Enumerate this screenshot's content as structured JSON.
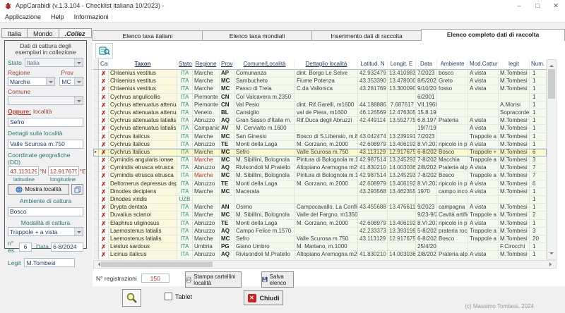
{
  "window": {
    "title": "AppCarabidi (v.1.3.104 - Checklist italiana 10/2023) -",
    "copyright": "(c) Massimo Tombesi, 2024"
  },
  "icons": {
    "app": "beetle",
    "minimize": "–",
    "maximize": "□",
    "close": "✕",
    "find": "search-records",
    "delete_mark": "✗",
    "row_pointer": "▸",
    "mostra": "globe",
    "copy": "copy-pages",
    "stampa": "printer",
    "salva": "floppy-disk",
    "cerca": "magnifier",
    "chiudi": "close-x"
  },
  "menu": {
    "items": [
      "Applicazione",
      "Help",
      "Informazioni"
    ]
  },
  "side_tabs": {
    "items": [
      "Italia",
      "Mondo",
      ".Collez"
    ],
    "active": 2
  },
  "main_tabs": {
    "items": [
      "Elenco taxa italiani",
      "Elenco taxa mondiali",
      "Inserimento dati di raccolta",
      "Elenco completo dati di raccolta"
    ],
    "active": 3
  },
  "sidebar": {
    "panel_title_line1": "Dati di cattura degli",
    "panel_title_line2": "esemplari in collezione",
    "stato_label": "Stato",
    "stato_value": "Italia",
    "regione_label": "Regione",
    "regione_value": "Marche",
    "prov_label": "Prov",
    "prov_value": "MC",
    "comune_label": "Comune",
    "comune_value": "",
    "oppure_label": "Oppure:",
    "localita_label": "località",
    "localita_value": "Sefro",
    "dettagli_label": "Dettagli sulla località",
    "dettagli_value": "Valle Scurosa m.750",
    "coord_label": "Coordinate geografiche (DD)",
    "lat_value": "43.113129",
    "lat_unit": "°N",
    "lat_caption": "latitudine",
    "lon_value": "12.917675",
    "lon_unit": "°E",
    "lon_caption": "longitudine",
    "mostra_button": "Mostra località",
    "ambiente_label": "Ambiente di cattura",
    "ambiente_value": "Bosco",
    "modalita_label": "Modalità di cattura",
    "modalita_value": "Trappole + a vista",
    "nes_label": "n° es.",
    "nes_value": "6",
    "data_label": "Data",
    "data_value": "6-8/2024",
    "legit_label": "Legit",
    "legit_value": "M.Tombesi"
  },
  "table": {
    "columns": [
      "Canc",
      "Taxon",
      "Stato",
      "Regione",
      "Prov",
      "Comune/Località",
      "Dettaglio località",
      "Latitud. N",
      "Longit. E",
      "Data",
      "Ambiente",
      "Mod.Cattura",
      "legit",
      "Num. c"
    ],
    "selected_index": 10,
    "rows": [
      {
        "taxon": "Chlaenius vestitus",
        "stato": "ITA",
        "regione": "Marche",
        "prov": "AP",
        "comune": "Comunanza",
        "dettaglio": "dint. Borgo Le Selve",
        "lat": "42.932479",
        "lon": "13.410983",
        "data": "7/2023",
        "ambiente": "bosco",
        "mod": "A vista",
        "legit": "M.Tombesi",
        "num": "1"
      },
      {
        "taxon": "Chlaenius vestitus",
        "stato": "ITA",
        "regione": "Marche",
        "prov": "MC",
        "comune": "Sambucheto",
        "dettaglio": "Fiume Potenza",
        "lat": "43.353390",
        "lon": "13.478000",
        "data": "8/5/2023",
        "ambiente": "Greto",
        "mod": "A vista",
        "legit": "M.Tombesi",
        "num": "1"
      },
      {
        "taxon": "Chlaenius vestitus",
        "stato": "ITA",
        "regione": "Marche",
        "prov": "MC",
        "comune": "Passo di Treia",
        "dettaglio": "C.da Vallonica",
        "lat": "43.281769",
        "lon": "13.300090",
        "data": "9/10/202",
        "ambiente": "fosso",
        "mod": "A vista",
        "legit": "M.Tombesi",
        "num": "1"
      },
      {
        "taxon": "Cychrus angulicollis",
        "stato": "ITA",
        "regione": "Piemonte",
        "prov": "CN",
        "comune": "Col Valcavera m.2350",
        "dettaglio": "",
        "lat": "",
        "lon": "",
        "data": "6/2001",
        "ambiente": "",
        "mod": "",
        "legit": "",
        "num": "1"
      },
      {
        "taxon": "Cychrus attenuatus attenuatus",
        "stato": "ITA",
        "regione": "Piemonte",
        "prov": "CN",
        "comune": "Val Pesio",
        "dettaglio": "dint. Rif.Garelli, m1600",
        "lat": "44.188886",
        "lon": "7.687617",
        "data": "VII.1968",
        "ambiente": "",
        "mod": "",
        "legit": "A.Morisi",
        "num": "1"
      },
      {
        "taxon": "Cychrus attenuatus attenuatus",
        "stato": "ITA",
        "regione": "Veneto",
        "prov": "BL",
        "comune": "Cansiglio",
        "dettaglio": "val de Piera, m1600",
        "lat": "46.126569",
        "lon": "12.476305",
        "data": "15.8.1961",
        "ambiente": "",
        "mod": "",
        "legit": "Sopracordevole",
        "num": "1"
      },
      {
        "taxon": "Cychrus attenuatus latialis",
        "stato": "ITA",
        "regione": "Abruzzo",
        "prov": "AQ",
        "comune": "Gran Sasso d'Italia m.",
        "dettaglio": "Rif.Duca degli Abruzzi",
        "lat": "42.449114",
        "lon": "13.552775",
        "data": "6.8.1973",
        "ambiente": "Prateria",
        "mod": "A vista",
        "legit": "M.Tombesi",
        "num": "1"
      },
      {
        "taxon": "Cychrus attenuatus latialis",
        "stato": "ITA",
        "regione": "Campania",
        "prov": "AV",
        "comune": "M. Cervialto m.1600",
        "dettaglio": "",
        "lat": "",
        "lon": "",
        "data": "19/7/197",
        "ambiente": "",
        "mod": "A vista",
        "legit": "M.Tombesi",
        "num": "1"
      },
      {
        "taxon": "Cychrus italicus",
        "stato": "ITA",
        "regione": "Marche",
        "prov": "MC",
        "comune": "San Ginesio",
        "dettaglio": "Bosco di S.Liberato, m.800",
        "lat": "43.042474",
        "lon": "13.239191",
        "data": "7/2023",
        "ambiente": "",
        "mod": "Trappole a caduta",
        "legit": "M.Tombesi",
        "num": "1"
      },
      {
        "taxon": "Cychrus italicus",
        "stato": "ITA",
        "regione": "Abruzzo",
        "prov": "TE",
        "comune": "Monti della Laga",
        "dettaglio": "M. Gorzano, m.2000",
        "lat": "42.608979",
        "lon": "13.406192",
        "data": "8.VI.2024",
        "ambiente": "ripicolo in pr",
        "mod": "A vista",
        "legit": "M.Tombesi",
        "num": "1"
      },
      {
        "taxon": "Cychrus italicus",
        "stato": "ITA",
        "regione": "Marche",
        "prov": "MC",
        "comune": "Sefro",
        "dettaglio": "Valle Scurosa m.750",
        "lat": "43.113129",
        "lon": "12.917675",
        "data": "6-8/2024",
        "ambiente": "Bosco",
        "mod": "Trappole + a vista",
        "legit": "M.Tombesi",
        "num": "6"
      },
      {
        "taxon": "Cymindis angularis ionae",
        "stato": "ITA",
        "regione": "Marche",
        "regione_red": true,
        "prov": "MC",
        "comune": "M. Sibillini, Bolognola",
        "dettaglio": "Pintura di Bolognola m.1200",
        "lat": "42.987514",
        "lon": "13.245293",
        "data": "7-8/2023",
        "ambiente": "Macchia",
        "mod": "Trappole a caduta",
        "legit": "M.Tombesi",
        "num": "3"
      },
      {
        "taxon": "Cymindis etrusca etrusca",
        "stato": "ITA",
        "regione": "Abruzzo",
        "prov": "AQ",
        "comune": "Rivisondoli M.Pratello",
        "dettaglio": "Altopiano Aremogna m2000",
        "lat": "41.830210",
        "lon": "14.003036",
        "data": "2/8/2024",
        "ambiente": "Prateria alpi",
        "mod": "A vista",
        "legit": "M.Tombesi",
        "num": "7"
      },
      {
        "taxon": "Cymindis etrusca etrusca",
        "stato": "ITA",
        "regione": "Marche",
        "regione_red": true,
        "prov": "MC",
        "comune": "M. Sibillini, Bolognola",
        "dettaglio": "Pintura di Bolognola m.1200",
        "lat": "42.987514",
        "lon": "13.245293",
        "data": "7-8/2023",
        "ambiente": "Bosco",
        "mod": "Trappole a caduta",
        "legit": "M.Tombesi",
        "num": "7"
      },
      {
        "taxon": "Deltomerus depressus depressus",
        "stato": "ITA",
        "regione": "Abruzzo",
        "prov": "TE",
        "comune": "Monti della Laga",
        "dettaglio": "M. Gorzano, m.2000",
        "lat": "42.608979",
        "lon": "13.406192",
        "data": "8.VI.2024",
        "ambiente": "ripicolo in pr",
        "mod": "A vista",
        "legit": "M.Tombesi",
        "num": "6"
      },
      {
        "taxon": "Dinodes decipiens",
        "stato": "ITA",
        "regione": "Marche",
        "prov": "MC",
        "comune": "Macerata",
        "dettaglio": "",
        "lat": "43.293568",
        "lon": "13.462355",
        "data": "1970",
        "ambiente": "campo incolt",
        "mod": "A vista",
        "legit": "M.Tombesi",
        "num": "1"
      },
      {
        "taxon": "Dinodes viridis",
        "stato": "UZB",
        "regione": "",
        "prov": "",
        "comune": "",
        "dettaglio": "",
        "lat": "",
        "lon": "",
        "data": "",
        "ambiente": "",
        "mod": "",
        "legit": "",
        "num": "1"
      },
      {
        "taxon": "Drypta dentata",
        "stato": "ITA",
        "regione": "Marche",
        "prov": "AN",
        "comune": "Osimo",
        "dettaglio": "Campocavallo, La Confluenza",
        "lat": "43.455688",
        "lon": "13.476611",
        "data": "9/2023",
        "ambiente": "campagna",
        "mod": "A vista",
        "legit": "M.Tombesi",
        "num": "1"
      },
      {
        "taxon": "Duvalius sclanoi",
        "stato": "ITA",
        "regione": "Marche",
        "prov": "MC",
        "comune": "M. Sibillini, Bolognola",
        "dettaglio": "Valle del Fargno, m1350",
        "lat": "",
        "lon": "",
        "data": "9/23-9/2",
        "ambiente": "Cavità artific",
        "mod": "Trappole a caduta",
        "legit": "M.Tombesi",
        "num": "2"
      },
      {
        "taxon": "Elaphrus uliginosus",
        "stato": "ITA",
        "regione": "Abruzzo",
        "prov": "TE",
        "comune": "Monti della Laga",
        "dettaglio": "M. Gorzano, m.2000",
        "lat": "42.608979",
        "lon": "13.406192",
        "data": "8.VI.2024",
        "ambiente": "ripicolo in pr",
        "mod": "A vista",
        "legit": "M.Tombesi",
        "num": "1"
      },
      {
        "taxon": "Laemostenus latialis",
        "stato": "ITA",
        "regione": "Abruzzo",
        "prov": "AQ",
        "comune": "Campo Felice m.1570",
        "dettaglio": "",
        "lat": "42.233373",
        "lon": "13.393199",
        "data": "5-8/2024",
        "ambiente": "prateria rocc",
        "mod": "Trappole a caduta",
        "legit": "M.Tombesi",
        "num": "3"
      },
      {
        "taxon": "Laemostenus latialis",
        "stato": "ITA",
        "regione": "Marche",
        "prov": "MC",
        "comune": "Sefro",
        "dettaglio": "Valle Scurosa m.750",
        "lat": "43.113129",
        "lon": "12.917675",
        "data": "6-8/2024",
        "ambiente": "Bosco",
        "mod": "Trappole a caduta",
        "legit": "M.Tombesi",
        "num": "20"
      },
      {
        "taxon": "Leistus sardous",
        "stato": "ITA",
        "regione": "Umbria",
        "prov": "PG",
        "comune": "Giano Umbro",
        "dettaglio": "M. Martano, m.1000",
        "lat": "",
        "lon": "",
        "data": "25/4/202",
        "ambiente": "",
        "mod": "",
        "legit": "F.Cirocchi",
        "num": "1"
      },
      {
        "taxon": "Licinus italicus",
        "stato": "ITA",
        "regione": "Abruzzo",
        "prov": "AQ",
        "comune": "Rivisondoli M.Pratello",
        "dettaglio": "Altopiano Aremogna m2000",
        "lat": "41.830210",
        "lon": "14.003036",
        "data": "2/8/2024",
        "ambiente": "Prateria alpi",
        "mod": "A vista",
        "legit": "M.Tombesi",
        "num": "1"
      }
    ]
  },
  "footer": {
    "registrazioni_label": "N° registrazioni",
    "registrazioni_value": "150",
    "stampa_label": "Stampa cartellini località",
    "salva_label": "Salva elenco",
    "tablet_label": "Tablet",
    "chiudi_label": "Chiudi"
  }
}
